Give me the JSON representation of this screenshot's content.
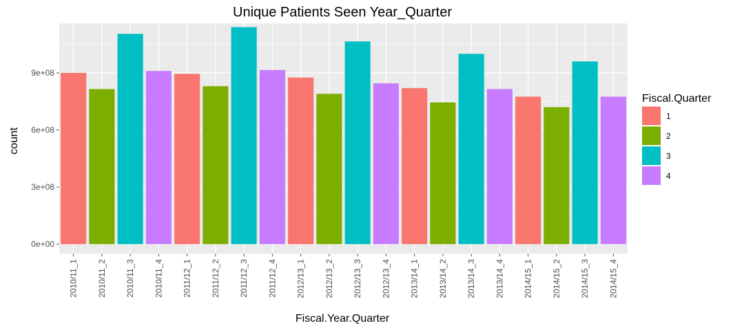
{
  "chart_data": {
    "type": "bar",
    "title": "Unique Patients Seen Year_Quarter",
    "xlabel": "Fiscal.Year.Quarter",
    "ylabel": "count",
    "ylim": [
      -50000000,
      1160000000
    ],
    "y_ticks": [
      0,
      300000000,
      600000000,
      900000000
    ],
    "y_tick_labels": [
      "0e+00",
      "3e+08",
      "6e+08",
      "9e+08"
    ],
    "grid": true,
    "legend_position": "right",
    "legend": {
      "title": "Fiscal.Quarter",
      "entries": [
        {
          "label": "1",
          "color": "#F8766D"
        },
        {
          "label": "2",
          "color": "#7CAE00"
        },
        {
          "label": "3",
          "color": "#00BFC4"
        },
        {
          "label": "4",
          "color": "#C77CFF"
        }
      ]
    },
    "categories": [
      "2010/11_1",
      "2010/11_2",
      "2010/11_3",
      "2010/11_4",
      "2011/12_1",
      "2011/12_2",
      "2011/12_3",
      "2011/12_4",
      "2012/13_1",
      "2012/13_2",
      "2012/13_3",
      "2012/13_4",
      "2013/14_1",
      "2013/14_2",
      "2013/14_3",
      "2013/14_4",
      "2014/15_1",
      "2014/15_2",
      "2014/15_3",
      "2014/15_4"
    ],
    "values": [
      900000000,
      815000000,
      1105000000,
      910000000,
      895000000,
      830000000,
      1140000000,
      915000000,
      875000000,
      790000000,
      1065000000,
      845000000,
      820000000,
      745000000,
      1000000000,
      815000000,
      775000000,
      720000000,
      960000000,
      775000000
    ],
    "quarter": [
      1,
      2,
      3,
      4,
      1,
      2,
      3,
      4,
      1,
      2,
      3,
      4,
      1,
      2,
      3,
      4,
      1,
      2,
      3,
      4
    ],
    "colors": {
      "panel": "#EBEBEB",
      "grid": "#FFFFFF",
      "tick": "#4d4d4d"
    }
  }
}
